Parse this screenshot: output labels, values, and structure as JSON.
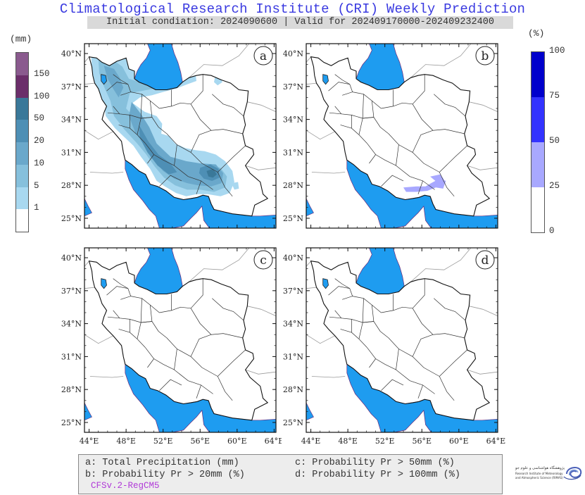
{
  "header": {
    "title": "Climatological Research Institute (CRI) Weekly Prediction",
    "subtitle": "Initial condiation: 2024090600 | Valid for 202409170000-202409232400"
  },
  "precip_legend": {
    "unit": "(mm)",
    "labels": [
      "150",
      "100",
      "50",
      "20",
      "10",
      "5",
      "1"
    ],
    "colors": [
      "#ffffff",
      "#a8d8f0",
      "#86c0dc",
      "#6aa8cb",
      "#4e8fb5",
      "#3a7899",
      "#6b2e6a",
      "#8a5a8e"
    ]
  },
  "prob_legend": {
    "unit": "(%)",
    "labels": [
      "100",
      "75",
      "50",
      "25",
      "0"
    ],
    "colors": [
      "#0000cc",
      "#3333ff",
      "#a8a8ff",
      "#ffffff"
    ]
  },
  "map": {
    "lat_labels": [
      "40°N",
      "37°N",
      "34°N",
      "31°N",
      "28°N",
      "25°N"
    ],
    "lon_labels": [
      "44°E",
      "48°E",
      "52°E",
      "56°E",
      "60°E",
      "64°E"
    ],
    "sea_color": "#1e9cf0",
    "panels": [
      {
        "id": "a",
        "letter": "a"
      },
      {
        "id": "b",
        "letter": "b"
      },
      {
        "id": "c",
        "letter": "c"
      },
      {
        "id": "d",
        "letter": "d"
      }
    ]
  },
  "caption": {
    "a": "a: Total Precipitation (mm)",
    "b": "b: Probability Pr > 20mm (%)",
    "c": "c: Probability Pr > 50mm (%)",
    "d": "d: Probability Pr > 100mm (%)",
    "model": "CFSv.2-RegCM5"
  },
  "logo": {
    "line1": "پژوهشگاه هواشناسی و علوم جو",
    "line2": "Research Institute of Meteorology",
    "line3": "and Atmospheric Science (RIMAS)"
  }
}
